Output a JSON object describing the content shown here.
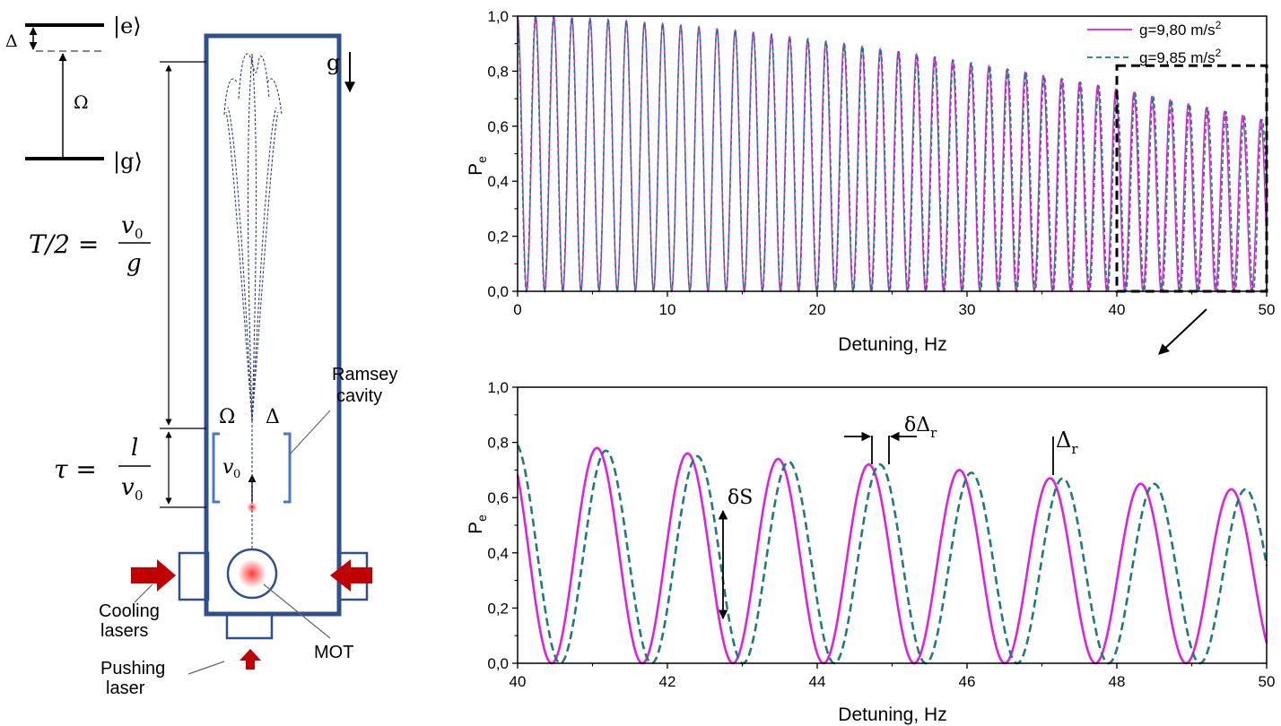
{
  "diagram": {
    "state_e": "|e⟩",
    "state_g": "|g⟩",
    "delta": "Δ",
    "omega": "Ω",
    "gravity": "g",
    "T_lhs": "T/2 =",
    "T_num": "v",
    "T_num_sub": "0",
    "T_den": "g",
    "tau_lhs": "τ =",
    "tau_num": "l",
    "tau_den": "v",
    "tau_den_sub": "0",
    "v0": "v",
    "v0_sub": "0",
    "cavity_omega": "Ω",
    "cavity_delta": "Δ",
    "ramsey_line1": "Ramsey",
    "ramsey_line2": "cavity",
    "cooling_line1": "Cooling",
    "cooling_line2": "lasers",
    "pushing_line1": "Pushing",
    "pushing_line2": "laser",
    "mot": "MOT"
  },
  "chart_data": [
    {
      "type": "line",
      "xlabel": "Detuning, Hz",
      "ylabel": "P",
      "ylabel_sub": "e",
      "xlim": [
        0,
        50
      ],
      "ylim": [
        0,
        1.0
      ],
      "x_ticks": [
        "0",
        "10",
        "20",
        "30",
        "40",
        "50"
      ],
      "y_ticks": [
        "0,0",
        "0,2",
        "0,4",
        "0,6",
        "0,8",
        "1,0"
      ],
      "series": [
        {
          "name": "g=9,80 m/s",
          "superscript": "2",
          "color": "#e020e0",
          "style": "solid",
          "period_hz": 1.21,
          "peak_at_0": 1.0,
          "peak_at_50": 0.62
        },
        {
          "name": "g=9,85 m/s",
          "superscript": "2",
          "color": "#1f7a7a",
          "style": "dashed",
          "period_hz": 1.213,
          "peak_at_0": 1.0,
          "peak_at_50": 0.62
        }
      ],
      "zoom_box": {
        "x_range": [
          40,
          50
        ],
        "y_top": 0.82
      }
    },
    {
      "type": "line",
      "xlabel": "Detuning, Hz",
      "ylabel": "P",
      "ylabel_sub": "e",
      "xlim": [
        40,
        50
      ],
      "ylim": [
        0,
        1.0
      ],
      "x_ticks": [
        "40",
        "42",
        "44",
        "46",
        "48",
        "50"
      ],
      "y_ticks": [
        "0,0",
        "0,2",
        "0,4",
        "0,6",
        "0,8",
        "1,0"
      ],
      "series": [
        {
          "name": "g=9,80 m/s2",
          "color": "#e020e0",
          "style": "solid",
          "peaks_x": [
            41.06,
            42.27,
            43.48,
            44.69,
            45.9,
            47.11,
            48.32,
            49.53
          ],
          "peaks_y": [
            0.78,
            0.76,
            0.74,
            0.72,
            0.7,
            0.67,
            0.65,
            0.63
          ]
        },
        {
          "name": "g=9,85 m/s2",
          "color": "#1f7a7a",
          "style": "dashed",
          "peaks_x": [
            39.96,
            41.18,
            42.4,
            43.62,
            44.84,
            46.06,
            47.28,
            48.5,
            49.72
          ],
          "peaks_y": [
            0.8,
            0.77,
            0.75,
            0.73,
            0.72,
            0.69,
            0.67,
            0.65,
            0.63
          ]
        }
      ],
      "annotations": {
        "dS": "δS",
        "dDr_delta": "δΔ",
        "dDr_sub": "r",
        "Dr": "Δ",
        "Dr_sub": "r"
      }
    }
  ]
}
